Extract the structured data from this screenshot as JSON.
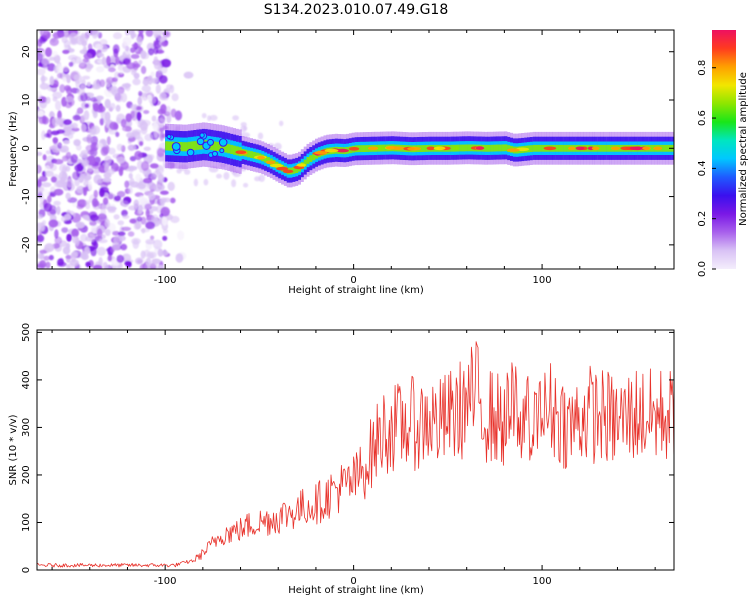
{
  "title": "S134.2023.010.07.49.G18",
  "colors": {
    "snr_line": "#e8322b",
    "colormap": [
      "#f4eefc",
      "#d9c2f5",
      "#a860ec",
      "#7a18e6",
      "#3a10ee",
      "#1f5bff",
      "#00c8ff",
      "#00e6c0",
      "#19e619",
      "#8de600",
      "#f2e600",
      "#ffa000",
      "#ff3b1f",
      "#ee1060"
    ]
  },
  "chart_data": [
    {
      "type": "heatmap",
      "xlabel": "Height of straight line (km)",
      "ylabel": "Frequency (Hz)",
      "xlim": [
        -168,
        170
      ],
      "ylim": [
        -25,
        24.5
      ],
      "xticks": [
        -100,
        0,
        100
      ],
      "yticks": [
        -20,
        -10,
        0,
        10,
        20
      ],
      "noise_region_x": [
        -168,
        -98
      ],
      "ridge": {
        "x": [
          -100,
          -90,
          -80,
          -70,
          -60,
          -50,
          -45,
          -40,
          -35,
          -30,
          -25,
          -20,
          -15,
          -10,
          -5,
          0,
          10,
          20,
          30,
          40,
          50,
          60,
          70,
          80,
          85,
          90,
          95,
          100,
          120,
          140,
          160,
          170
        ],
        "y": [
          0.5,
          0.3,
          0.8,
          0.2,
          -0.8,
          -1.8,
          -2.7,
          -3.8,
          -4.8,
          -4.3,
          -2.5,
          -1.3,
          -0.6,
          -0.4,
          -0.5,
          -0.1,
          0.0,
          0.1,
          -0.1,
          0.0,
          0.0,
          0.1,
          0.0,
          0.1,
          -0.4,
          -0.2,
          0.0,
          0.0,
          0.0,
          0.0,
          0.0,
          0.0
        ]
      },
      "colorbar": {
        "label": "Normalized spectral amplitude",
        "range": [
          0,
          0.95
        ],
        "ticks": [
          0.0,
          0.2,
          0.4,
          0.6,
          0.8
        ]
      }
    },
    {
      "type": "line",
      "xlabel": "Height of straight line (km)",
      "ylabel": "SNR (10 * v/v)",
      "xlim": [
        -168,
        170
      ],
      "ylim": [
        0,
        505
      ],
      "xticks": [
        -100,
        0,
        100
      ],
      "yticks": [
        0,
        100,
        200,
        300,
        400,
        500
      ],
      "series": [
        {
          "x": [
            -168,
            -140,
            -110,
            -95,
            -85,
            -80,
            -75,
            -70,
            -65,
            -60,
            -55,
            -50,
            -45,
            -40,
            -35,
            -30,
            -25,
            -20,
            -15,
            -10,
            -5,
            0,
            5,
            10,
            15,
            20,
            25,
            30,
            35,
            40,
            45,
            50,
            55,
            60,
            65,
            70,
            75,
            80,
            85,
            90,
            95,
            100,
            105,
            110,
            115,
            120,
            125,
            130,
            135,
            140,
            145,
            150,
            155,
            160,
            165,
            170
          ],
          "y": [
            10,
            10,
            10,
            10,
            20,
            35,
            55,
            75,
            80,
            85,
            95,
            100,
            105,
            110,
            120,
            125,
            135,
            140,
            150,
            170,
            175,
            185,
            210,
            250,
            290,
            300,
            300,
            310,
            305,
            320,
            305,
            320,
            330,
            350,
            370,
            330,
            320,
            310,
            340,
            330,
            300,
            320,
            340,
            320,
            300,
            320,
            330,
            325,
            320,
            310,
            320,
            330,
            325,
            320,
            330,
            320
          ]
        }
      ]
    }
  ]
}
